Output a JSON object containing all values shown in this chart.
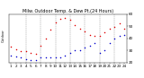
{
  "title": "Milw. Outdoor Temp. & Dew Pt.(24 Hours)",
  "bg_color": "#ffffff",
  "plot_bg": "#ffffff",
  "grid_color": "#888888",
  "temp_color": "#dd0000",
  "dew_color": "#0000cc",
  "hours": [
    1,
    2,
    3,
    4,
    5,
    6,
    7,
    8,
    9,
    10,
    11,
    12,
    13,
    14,
    15,
    16,
    17,
    18,
    19,
    20,
    21,
    22,
    23,
    24
  ],
  "temp": [
    33,
    31,
    29,
    29,
    28,
    27,
    34,
    40,
    47,
    53,
    56,
    57,
    55,
    51,
    48,
    46,
    43,
    42,
    42,
    45,
    48,
    49,
    52,
    48
  ],
  "dew": [
    26,
    25,
    24,
    23,
    22,
    22,
    24,
    24,
    24,
    24,
    24,
    26,
    28,
    30,
    30,
    32,
    34,
    36,
    28,
    30,
    36,
    40,
    42,
    43
  ],
  "ylim": [
    20,
    60
  ],
  "yticks": [
    20,
    30,
    40,
    50,
    60
  ],
  "ytick_labels": [
    "20",
    "30",
    "40",
    "50",
    "60"
  ],
  "grid_x": [
    4,
    7,
    10,
    13,
    16,
    19,
    22
  ],
  "xtick_hours": [
    1,
    2,
    3,
    4,
    5,
    6,
    7,
    8,
    9,
    10,
    11,
    12,
    13,
    14,
    15,
    16,
    17,
    18,
    19,
    20,
    21,
    22,
    23,
    24
  ],
  "marker_size": 1.2,
  "title_fontsize": 3.5,
  "tick_fontsize": 3.0
}
